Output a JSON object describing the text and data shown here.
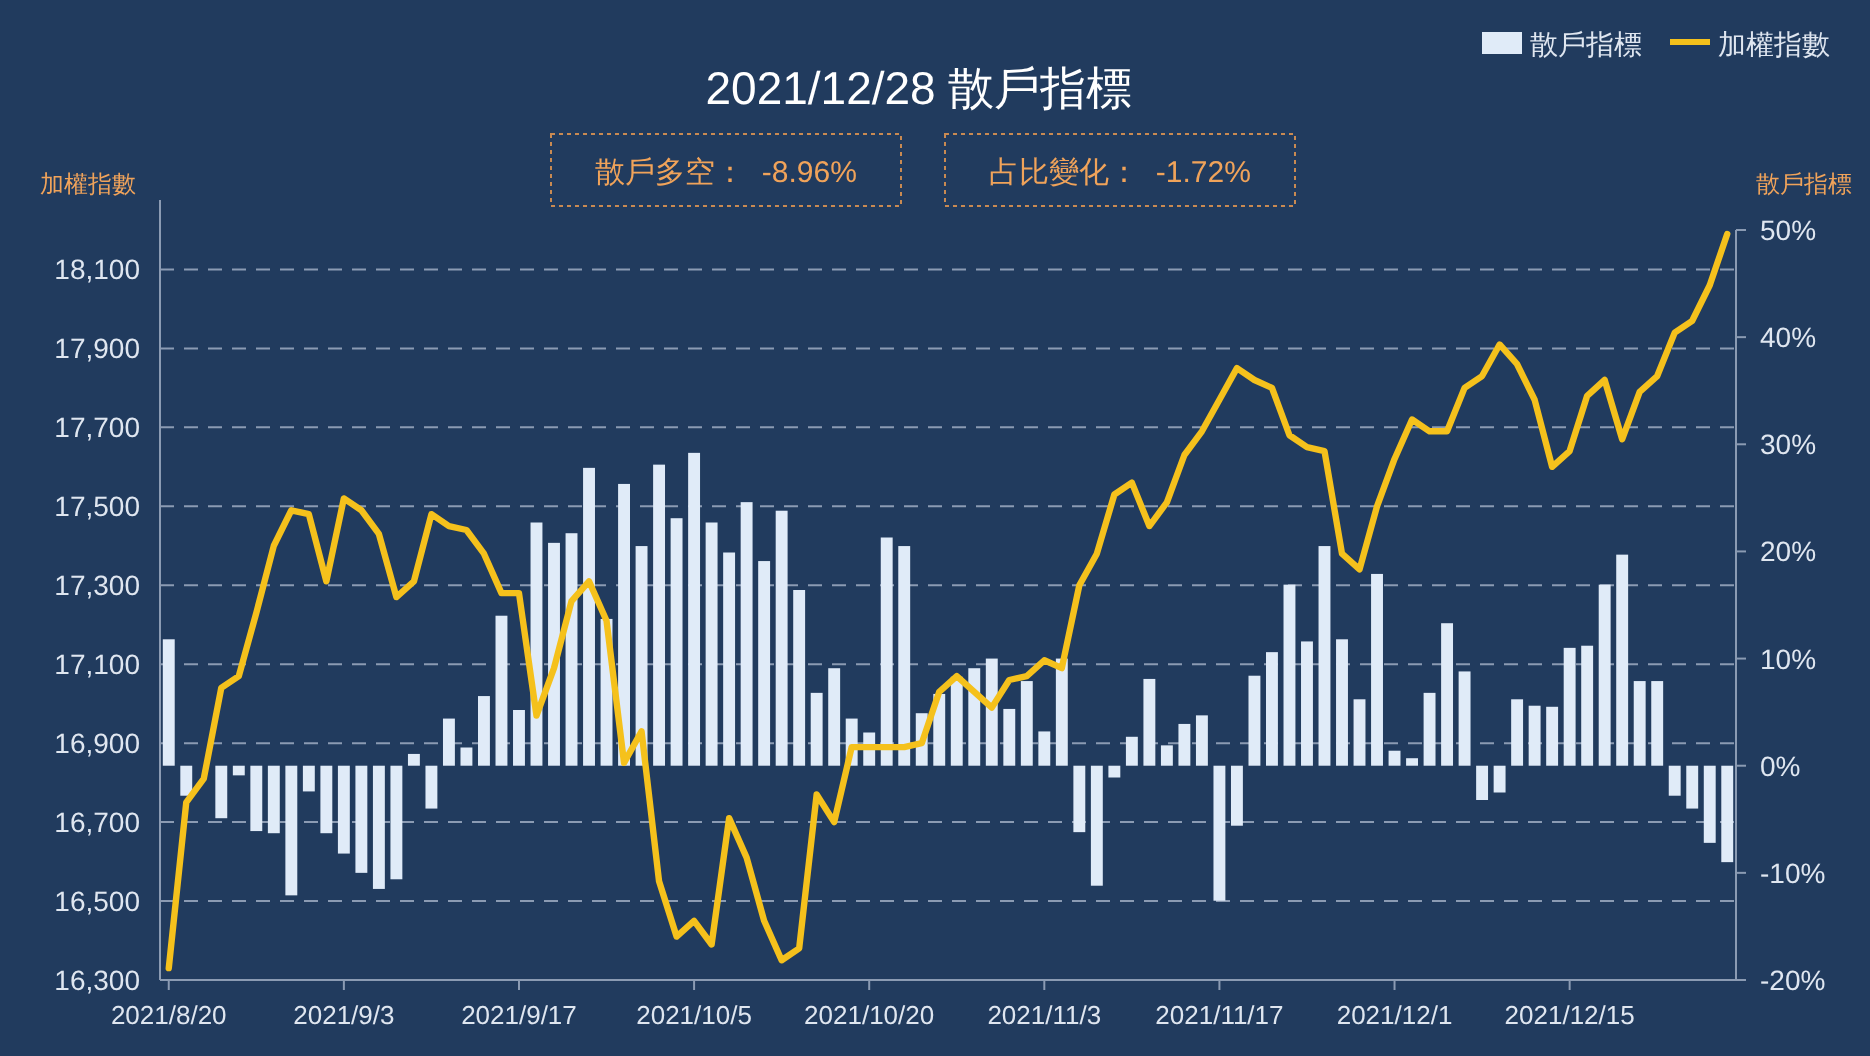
{
  "chart_data": {
    "type": "bar",
    "title": "2021/12/28 散戶指標",
    "annotations": [
      "散戶多空：  -8.96%",
      "占比變化：  -1.72%"
    ],
    "ylabel": "加權指數",
    "y2label": "散戶指標",
    "categories": [
      "2021/8/20",
      null,
      null,
      null,
      null,
      null,
      null,
      null,
      null,
      null,
      "2021/9/3",
      null,
      null,
      null,
      null,
      null,
      null,
      null,
      null,
      null,
      "2021/9/17",
      null,
      null,
      null,
      null,
      null,
      null,
      null,
      null,
      null,
      "2021/10/5",
      null,
      null,
      null,
      null,
      null,
      null,
      null,
      null,
      null,
      "2021/10/20",
      null,
      null,
      null,
      null,
      null,
      null,
      null,
      null,
      null,
      "2021/11/3",
      null,
      null,
      null,
      null,
      null,
      null,
      null,
      null,
      null,
      "2021/11/17",
      null,
      null,
      null,
      null,
      null,
      null,
      null,
      null,
      null,
      "2021/12/1",
      null,
      null,
      null,
      null,
      null,
      null,
      null,
      null,
      null,
      "2021/12/15",
      null,
      null,
      null,
      null,
      null,
      null,
      null,
      null,
      null
    ],
    "ylim": [
      16300,
      18200
    ],
    "yticks": [
      {
        "value": 16300,
        "label": "16,300"
      },
      {
        "value": 16500,
        "label": "16,500"
      },
      {
        "value": 16700,
        "label": "16,700"
      },
      {
        "value": 16900,
        "label": "16,900"
      },
      {
        "value": 17100,
        "label": "17,100"
      },
      {
        "value": 17300,
        "label": "17,300"
      },
      {
        "value": 17500,
        "label": "17,500"
      },
      {
        "value": 17700,
        "label": "17,700"
      },
      {
        "value": 17900,
        "label": "17,900"
      },
      {
        "value": 18100,
        "label": "18,100"
      }
    ],
    "y2lim": [
      -20,
      50
    ],
    "y2ticks": [
      {
        "value": -20,
        "label": "-20%"
      },
      {
        "value": -10,
        "label": "-10%"
      },
      {
        "value": 0,
        "label": "0%"
      },
      {
        "value": 10,
        "label": "10%"
      },
      {
        "value": 20,
        "label": "20%"
      },
      {
        "value": 30,
        "label": "30%"
      },
      {
        "value": 40,
        "label": "40%"
      },
      {
        "value": 50,
        "label": "50%"
      }
    ],
    "grid": "y",
    "legend": "top right",
    "series": [
      {
        "name": "散戶指標",
        "axis": "y2",
        "color": "#e0ebf8",
        "values": [
          11.8,
          -2.8,
          null,
          -4.9,
          -0.9,
          -6.1,
          -6.3,
          -12.1,
          -2.4,
          -6.3,
          -8.2,
          -10.0,
          -11.5,
          -10.6,
          1.1,
          -4.0,
          4.4,
          1.7,
          6.5,
          14.0,
          5.2,
          22.7,
          20.8,
          21.7,
          27.8,
          13.7,
          26.3,
          20.5,
          28.1,
          23.1,
          29.2,
          22.7,
          19.9,
          24.6,
          19.1,
          23.8,
          16.4,
          6.8,
          9.1,
          4.4,
          3.1,
          21.3,
          20.5,
          4.9,
          6.7,
          8.3,
          9.1,
          10.0,
          5.3,
          7.9,
          3.2,
          10.0,
          -6.2,
          -11.2,
          -1.1,
          2.7,
          8.1,
          1.9,
          3.9,
          4.7,
          -12.6,
          -5.6,
          8.4,
          10.6,
          16.9,
          11.6,
          20.5,
          11.8,
          6.2,
          17.9,
          1.4,
          0.7,
          6.8,
          13.3,
          8.8,
          -3.2,
          -2.5,
          6.2,
          5.6,
          5.5,
          11.0,
          11.2,
          16.9,
          19.7,
          7.9,
          7.9,
          -2.8,
          -4.0,
          -7.2,
          -9.0
        ]
      },
      {
        "name": "加權指數",
        "type": "line",
        "color": "#f5c11c",
        "values": [
          16330,
          16750,
          16810,
          17040,
          17070,
          17230,
          17400,
          17490,
          17480,
          17310,
          17520,
          17490,
          17430,
          17270,
          17310,
          17480,
          17450,
          17440,
          17380,
          17280,
          17280,
          16970,
          17090,
          17260,
          17310,
          17210,
          16850,
          16930,
          16550,
          16410,
          16450,
          16390,
          16710,
          16610,
          16450,
          16350,
          16380,
          16770,
          16700,
          16890,
          16890,
          16890,
          16890,
          16900,
          17030,
          17070,
          17030,
          16990,
          17060,
          17070,
          17110,
          17090,
          17300,
          17380,
          17530,
          17560,
          17450,
          17510,
          17630,
          17690,
          17770,
          17850,
          17820,
          17800,
          17680,
          17650,
          17640,
          17380,
          17340,
          17500,
          17620,
          17720,
          17690,
          17690,
          17800,
          17830,
          17910,
          17860,
          17770,
          17600,
          17640,
          17780,
          17820,
          17670,
          17790,
          17830,
          17940,
          17970,
          18060,
          18190
        ]
      }
    ]
  }
}
